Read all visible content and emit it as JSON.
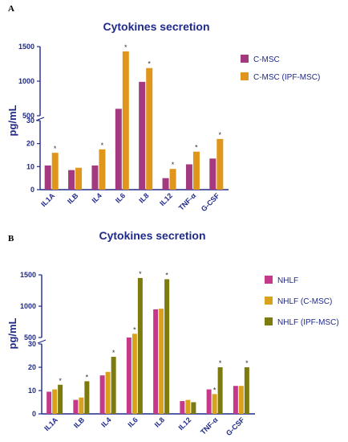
{
  "chart_data": [
    {
      "type": "bar",
      "panel": "A",
      "title": "Cytokines secretion",
      "ylabel": "pg/mL",
      "categories": [
        "IL1A",
        "ILB",
        "IL4",
        "IL6",
        "IL8",
        "IL12",
        "TNF-α",
        "G-CSF"
      ],
      "series": [
        {
          "name": "C-MSC",
          "color": "#a3397e",
          "values": [
            10.5,
            8.5,
            10.5,
            600,
            990,
            5,
            11,
            13.5
          ]
        },
        {
          "name": "C-MSC (IPF-MSC)",
          "color": "#e0961c",
          "values": [
            16,
            9.5,
            17.5,
            1430,
            1190,
            9,
            16.5,
            22
          ]
        }
      ],
      "significant": [
        [
          false,
          true
        ],
        [
          false,
          false
        ],
        [
          false,
          true
        ],
        [
          false,
          true
        ],
        [
          false,
          true
        ],
        [
          false,
          true
        ],
        [
          false,
          true
        ],
        [
          false,
          true
        ]
      ],
      "y_axis": {
        "break_low": [
          0,
          30
        ],
        "break_high": [
          500,
          1500
        ],
        "low_ticks": [
          0,
          10,
          20,
          30
        ],
        "high_ticks": [
          500,
          1000,
          1500
        ]
      },
      "significance_marker": "*",
      "grid": false,
      "legend": "right"
    },
    {
      "type": "bar",
      "panel": "B",
      "title": "Cytokines secretion",
      "ylabel": "pg/mL",
      "categories": [
        "IL1A",
        "ILB",
        "IL4",
        "IL6",
        "IL8",
        "IL12",
        "TNF-α",
        "G-CSF"
      ],
      "series": [
        {
          "name": "NHLF",
          "color": "#c6398a",
          "values": [
            9.5,
            6,
            16.5,
            35,
            950,
            5.5,
            10.5,
            12
          ]
        },
        {
          "name": "NHLF (C-MSC)",
          "color": "#d9a21c",
          "values": [
            10.5,
            7,
            18,
            560,
            960,
            6,
            8.5,
            12
          ]
        },
        {
          "name": "NHLF (IPF-MSC)",
          "color": "#7d7a0e",
          "values": [
            12.5,
            14,
            24.5,
            1450,
            1430,
            5,
            20,
            20
          ]
        }
      ],
      "significant": [
        [
          false,
          false,
          true
        ],
        [
          false,
          false,
          true
        ],
        [
          false,
          false,
          true
        ],
        [
          false,
          true,
          true
        ],
        [
          false,
          false,
          true
        ],
        [
          false,
          false,
          false
        ],
        [
          false,
          true,
          true
        ],
        [
          false,
          false,
          true
        ]
      ],
      "y_axis": {
        "break_low": [
          0,
          30
        ],
        "break_high": [
          500,
          1500
        ],
        "low_ticks": [
          0,
          10,
          20,
          30
        ],
        "high_ticks": [
          500,
          1000,
          1500
        ]
      },
      "significance_marker": "*",
      "grid": false,
      "legend": "right"
    }
  ]
}
